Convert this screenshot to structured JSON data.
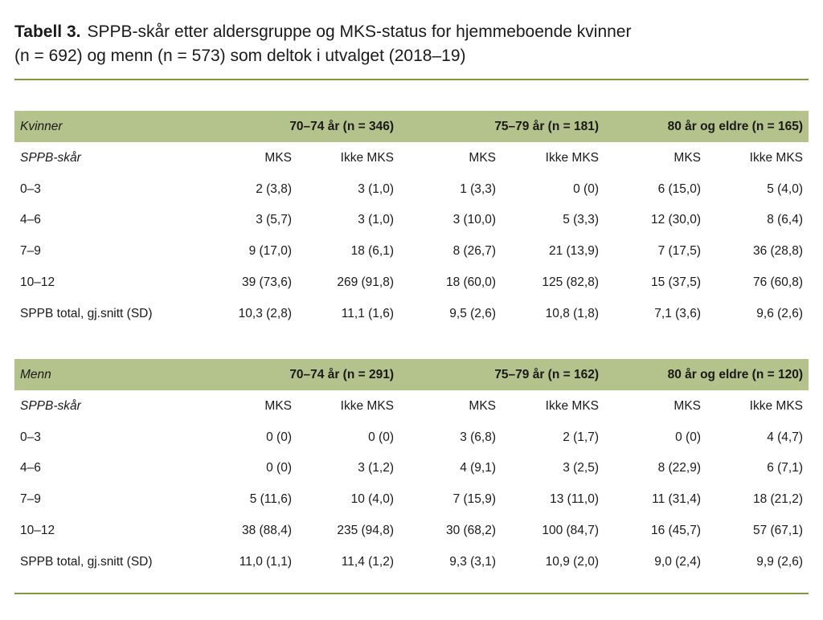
{
  "title": {
    "label": "Tabell 3.",
    "lines": [
      "SPPB-skår etter aldersgruppe og MKS-status for hjemmeboende kvinner",
      "(n = 692) og menn (n = 573) som deltok i utvalget (2018–19)"
    ]
  },
  "tables": [
    {
      "group": "Kvinner",
      "age_groups": [
        "70–74 år (n = 346)",
        "75–79 år (n = 181)",
        "80 år og eldre (n = 165)"
      ],
      "subheader": {
        "label": "SPPB-skår",
        "columns": [
          "MKS",
          "Ikke MKS",
          "MKS",
          "Ikke MKS",
          "MKS",
          "Ikke MKS"
        ]
      },
      "rows": [
        [
          "0–3",
          "2 (3,8)",
          "3 (1,0)",
          "1 (3,3)",
          "0 (0)",
          "6 (15,0)",
          "5 (4,0)"
        ],
        [
          "4–6",
          "3 (5,7)",
          "3 (1,0)",
          "3 (10,0)",
          "5 (3,3)",
          "12 (30,0)",
          "8 (6,4)"
        ],
        [
          "7–9",
          "9 (17,0)",
          "18 (6,1)",
          "8 (26,7)",
          "21 (13,9)",
          "7 (17,5)",
          "36 (28,8)"
        ],
        [
          "10–12",
          "39 (73,6)",
          "269 (91,8)",
          "18 (60,0)",
          "125 (82,8)",
          "15 (37,5)",
          "76 (60,8)"
        ],
        [
          "SPPB total, gj.snitt (SD)",
          "10,3 (2,8)",
          "11,1 (1,6)",
          "9,5 (2,6)",
          "10,8 (1,8)",
          "7,1 (3,6)",
          "9,6 (2,6)"
        ]
      ]
    },
    {
      "group": "Menn",
      "age_groups": [
        "70–74 år (n = 291)",
        "75–79 år (n = 162)",
        "80 år og eldre (n = 120)"
      ],
      "subheader": {
        "label": "SPPB-skår",
        "columns": [
          "MKS",
          "Ikke MKS",
          "MKS",
          "Ikke MKS",
          "MKS",
          "Ikke MKS"
        ]
      },
      "rows": [
        [
          "0–3",
          "0 (0)",
          "0 (0)",
          "3 (6,8)",
          "2 (1,7)",
          "0 (0)",
          "4 (4,7)"
        ],
        [
          "4–6",
          "0 (0)",
          "3 (1,2)",
          "4 (9,1)",
          "3 (2,5)",
          "8 (22,9)",
          "6 (7,1)"
        ],
        [
          "7–9",
          "5 (11,6)",
          "10 (4,0)",
          "7 (15,9)",
          "13 (11,0)",
          "11 (31,4)",
          "18 (21,2)"
        ],
        [
          "10–12",
          "38 (88,4)",
          "235 (94,8)",
          "30 (68,2)",
          "100 (84,7)",
          "16 (45,7)",
          "57 (67,1)"
        ],
        [
          "SPPB total, gj.snitt (SD)",
          "11,0 (1,1)",
          "11,4 (1,2)",
          "9,3 (3,1)",
          "10,9 (2,0)",
          "9,0 (2,4)",
          "9,9 (2,6)"
        ]
      ]
    }
  ]
}
